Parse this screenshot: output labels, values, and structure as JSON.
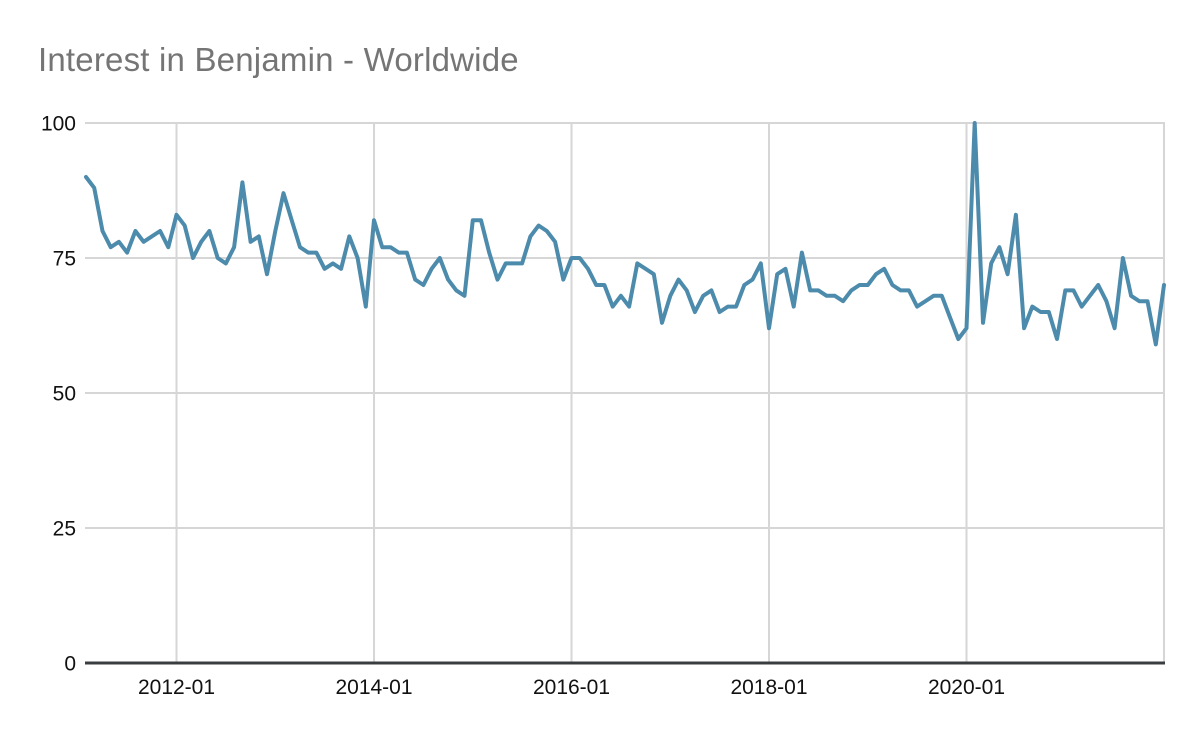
{
  "title": "Interest in Benjamin - Worldwide",
  "colors": {
    "line": "#4d8bac",
    "grid": "#d6d6d6",
    "axis": "#3a3d40",
    "title_text": "#757575",
    "label_text": "#111111",
    "background": "#ffffff"
  },
  "y_axis": {
    "ticks": [
      0,
      25,
      50,
      75,
      100
    ],
    "min": 0,
    "max": 100
  },
  "x_axis": {
    "tick_labels": [
      "2012-01",
      "2014-01",
      "2016-01",
      "2018-01",
      "2020-01"
    ]
  },
  "chart_data": {
    "type": "line",
    "title": "Interest in Benjamin - Worldwide",
    "series_name": "Interest in Benjamin",
    "ylabel": "",
    "xlabel": "",
    "ylim": [
      0,
      100
    ],
    "grid": true,
    "legend_position": "none",
    "x": [
      "2011-02",
      "2011-03",
      "2011-04",
      "2011-05",
      "2011-06",
      "2011-07",
      "2011-08",
      "2011-09",
      "2011-10",
      "2011-11",
      "2011-12",
      "2012-01",
      "2012-02",
      "2012-03",
      "2012-04",
      "2012-05",
      "2012-06",
      "2012-07",
      "2012-08",
      "2012-09",
      "2012-10",
      "2012-11",
      "2012-12",
      "2013-01",
      "2013-02",
      "2013-03",
      "2013-04",
      "2013-05",
      "2013-06",
      "2013-07",
      "2013-08",
      "2013-09",
      "2013-10",
      "2013-11",
      "2013-12",
      "2014-01",
      "2014-02",
      "2014-03",
      "2014-04",
      "2014-05",
      "2014-06",
      "2014-07",
      "2014-08",
      "2014-09",
      "2014-10",
      "2014-11",
      "2014-12",
      "2015-01",
      "2015-02",
      "2015-03",
      "2015-04",
      "2015-05",
      "2015-06",
      "2015-07",
      "2015-08",
      "2015-09",
      "2015-10",
      "2015-11",
      "2015-12",
      "2016-01",
      "2016-02",
      "2016-03",
      "2016-04",
      "2016-05",
      "2016-06",
      "2016-07",
      "2016-08",
      "2016-09",
      "2016-10",
      "2016-11",
      "2016-12",
      "2017-01",
      "2017-02",
      "2017-03",
      "2017-04",
      "2017-05",
      "2017-06",
      "2017-07",
      "2017-08",
      "2017-09",
      "2017-10",
      "2017-11",
      "2017-12",
      "2018-01",
      "2018-02",
      "2018-03",
      "2018-04",
      "2018-05",
      "2018-06",
      "2018-07",
      "2018-08",
      "2018-09",
      "2018-10",
      "2018-11",
      "2018-12",
      "2019-01",
      "2019-02",
      "2019-03",
      "2019-04",
      "2019-05",
      "2019-06",
      "2019-07",
      "2019-08",
      "2019-09",
      "2019-10",
      "2019-11",
      "2019-12",
      "2020-01",
      "2020-02",
      "2020-03",
      "2020-04",
      "2020-05",
      "2020-06",
      "2020-07",
      "2020-08",
      "2020-09",
      "2020-10",
      "2020-11",
      "2020-12",
      "2021-01",
      "2021-02",
      "2021-03",
      "2021-04",
      "2021-05",
      "2021-06",
      "2021-07",
      "2021-08",
      "2021-09",
      "2021-10",
      "2021-11",
      "2021-12",
      "2022-01"
    ],
    "values": [
      90,
      88,
      80,
      77,
      78,
      76,
      80,
      78,
      79,
      80,
      77,
      83,
      81,
      75,
      78,
      80,
      75,
      74,
      77,
      89,
      78,
      79,
      72,
      80,
      87,
      82,
      77,
      76,
      76,
      73,
      74,
      73,
      79,
      75,
      66,
      82,
      77,
      77,
      76,
      76,
      71,
      70,
      73,
      75,
      71,
      69,
      68,
      82,
      82,
      76,
      71,
      74,
      74,
      74,
      79,
      81,
      80,
      78,
      71,
      75,
      75,
      73,
      70,
      70,
      66,
      68,
      66,
      74,
      73,
      72,
      63,
      68,
      71,
      69,
      65,
      68,
      69,
      65,
      66,
      66,
      70,
      71,
      74,
      62,
      72,
      73,
      66,
      76,
      69,
      69,
      68,
      68,
      67,
      69,
      70,
      70,
      72,
      73,
      70,
      69,
      69,
      66,
      67,
      68,
      68,
      64,
      60,
      62,
      100,
      63,
      74,
      77,
      72,
      83,
      62,
      66,
      65,
      65,
      60,
      69,
      69,
      66,
      68,
      70,
      67,
      62,
      75,
      68,
      67,
      67,
      59,
      70
    ]
  }
}
